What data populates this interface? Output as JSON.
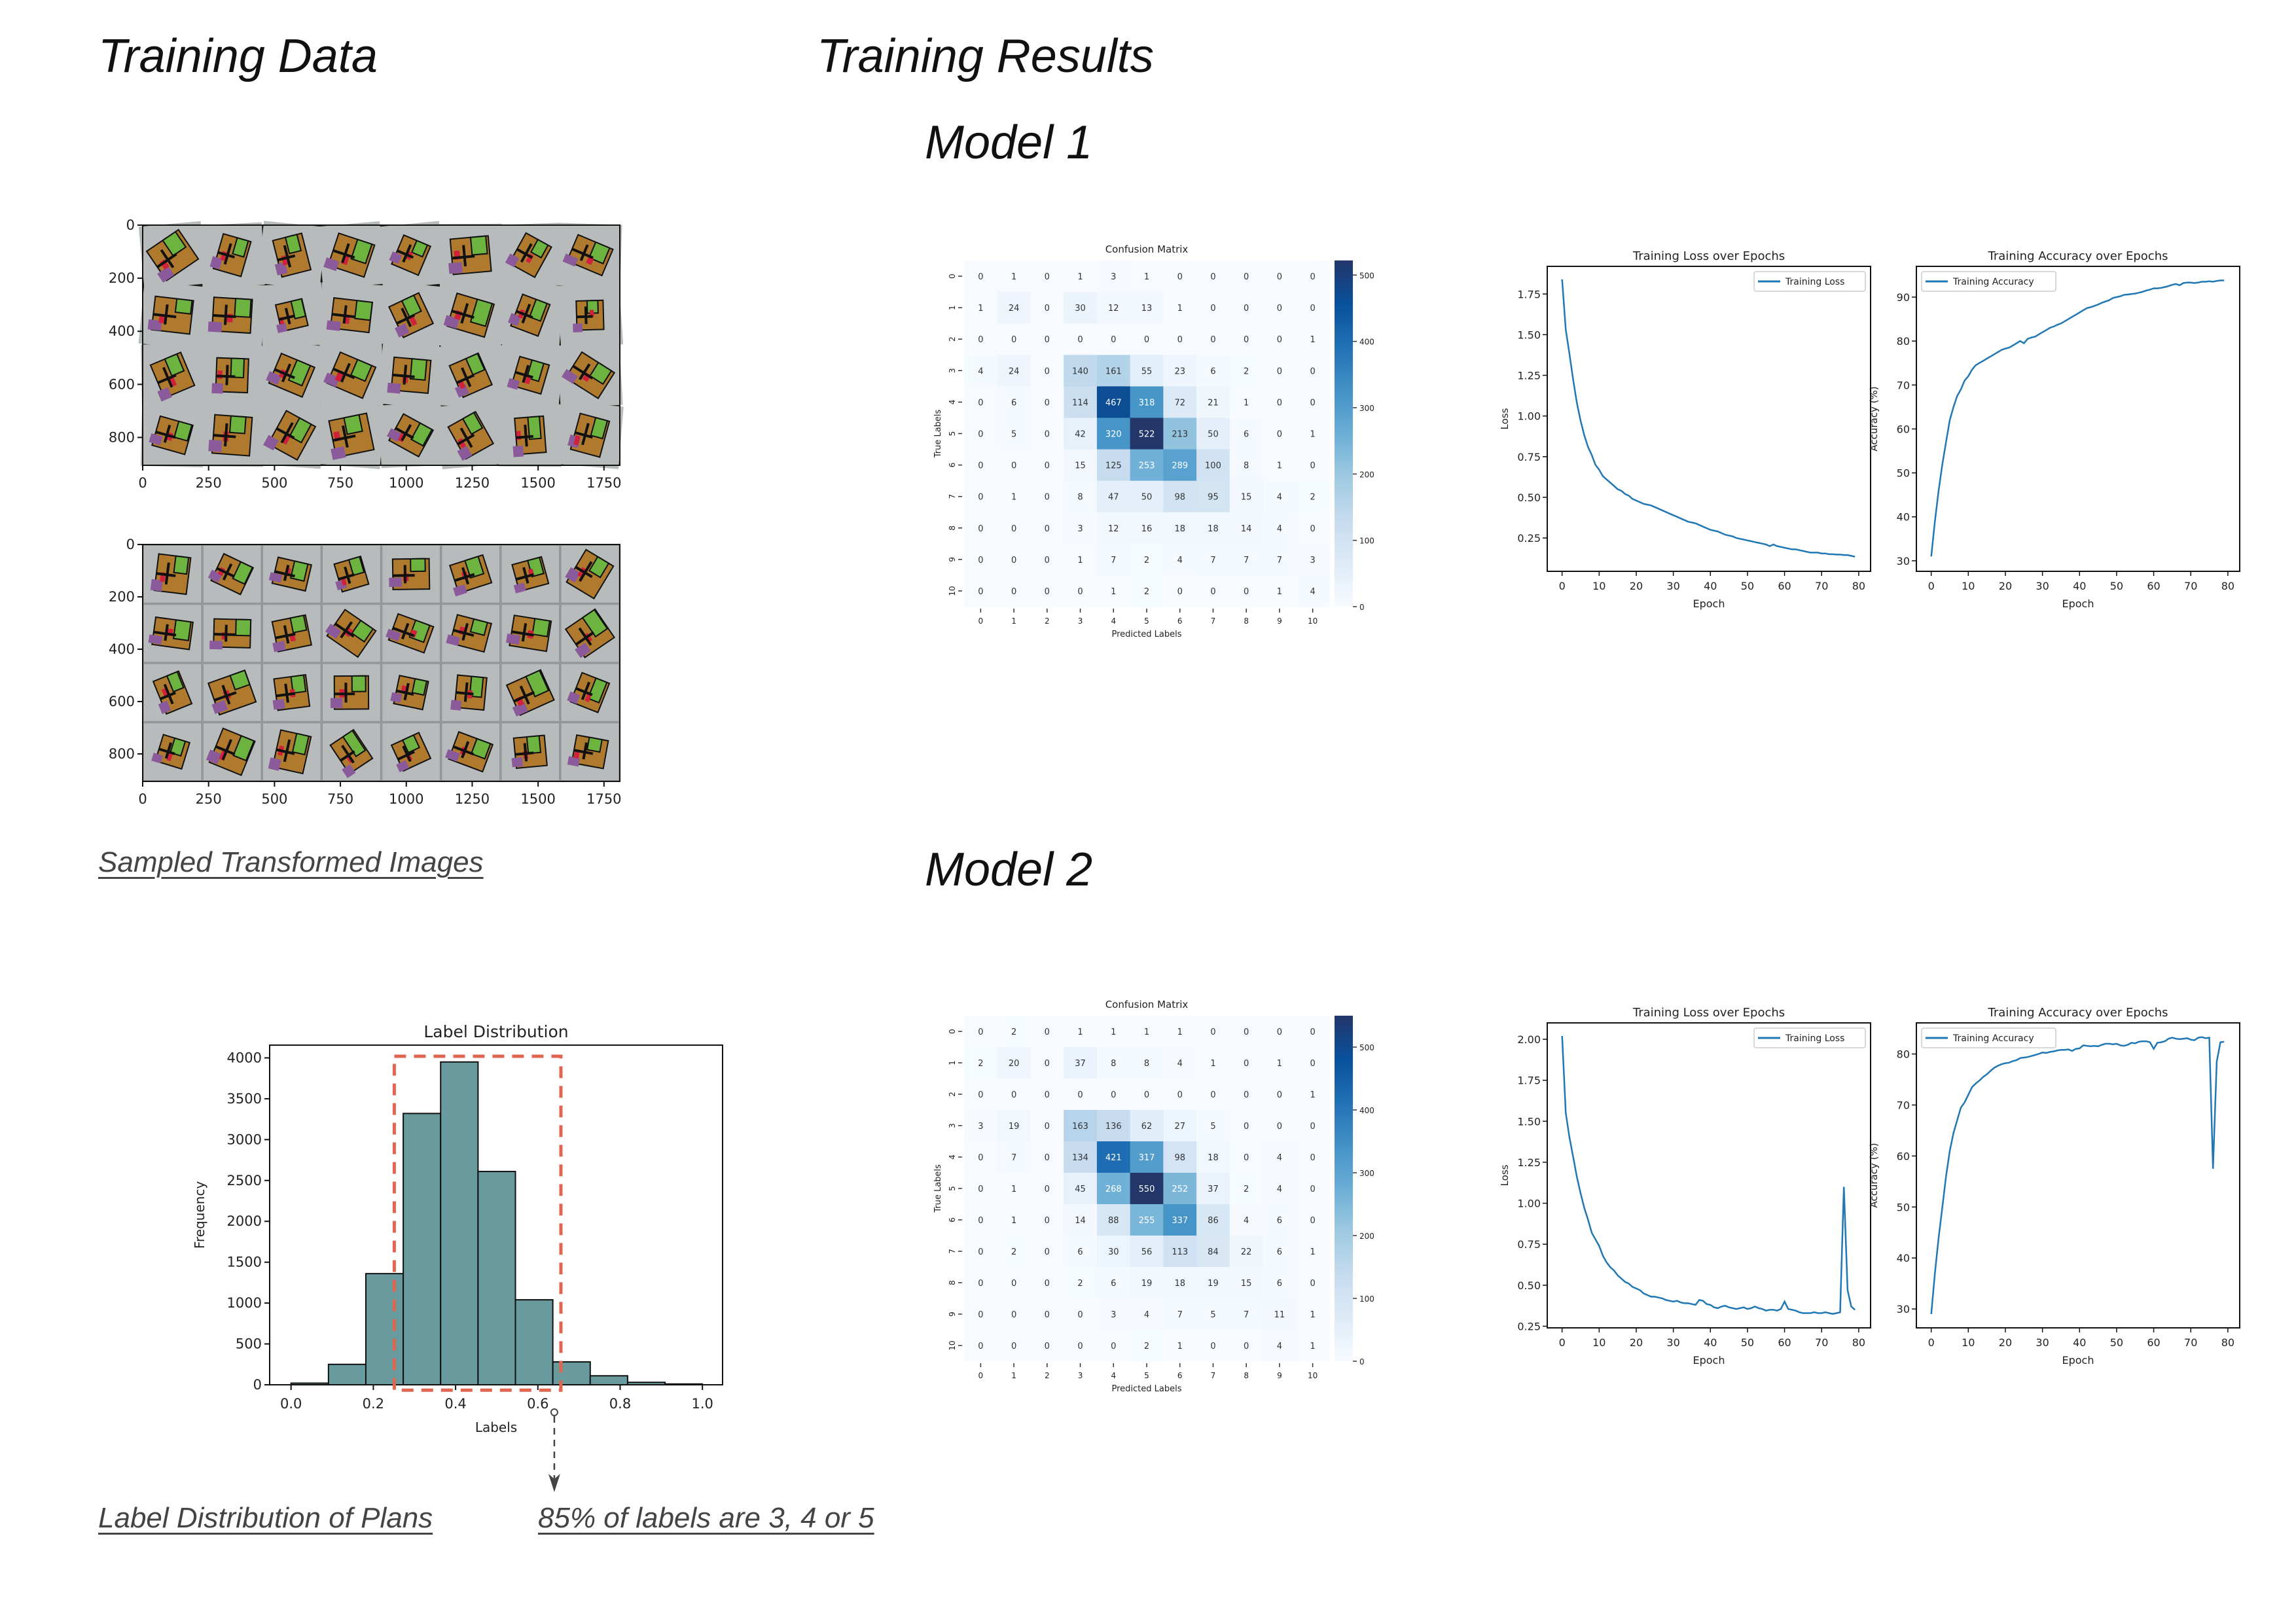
{
  "headings": {
    "training_data": "Training Data",
    "training_results": "Training Results",
    "model1": "Model 1",
    "model2": "Model 2"
  },
  "captions": {
    "sampled_images": "Sampled Transformed Images",
    "label_distribution": "Label Distribution of Plans",
    "annotation": "85% of labels are 3, 4 or 5"
  },
  "colors": {
    "histogram_bar": "#699a9e",
    "highlight_box": "#e06650",
    "line": "#1f77b4",
    "cmap": [
      "#f7fbff",
      "#deebf7",
      "#c6dbef",
      "#9ecae1",
      "#6baed6",
      "#4292c6",
      "#2171b5",
      "#08519c",
      "#23366a"
    ],
    "tile_bg": "#b8bbbb",
    "room_colors": [
      "#b07a2e",
      "#6cb43f",
      "#111111",
      "#8a5a9b",
      "#d0203a",
      "#3a7bd5"
    ]
  },
  "chart_data": [
    {
      "type": "image",
      "content": "sample-floorplans",
      "grid": [
        8,
        4
      ],
      "xlim": [
        0,
        1810
      ],
      "ylim": [
        905,
        0
      ],
      "xticks": [
        "0",
        "250",
        "500",
        "750",
        "1000",
        "1250",
        "1500",
        "1750"
      ],
      "yticks": [
        "0",
        "200",
        "400",
        "600",
        "800"
      ]
    },
    {
      "type": "image",
      "content": "sample-floorplans",
      "grid": [
        8,
        4
      ],
      "xlim": [
        0,
        1810
      ],
      "ylim": [
        905,
        0
      ],
      "xticks": [
        "0",
        "250",
        "500",
        "750",
        "1000",
        "1250",
        "1500",
        "1750"
      ],
      "yticks": [
        "0",
        "200",
        "400",
        "600",
        "800"
      ]
    },
    {
      "type": "bar",
      "title": "Label Distribution",
      "xlabel": "Labels",
      "ylabel": "Frequency",
      "bin_range": [
        0,
        1
      ],
      "values": [
        20,
        250,
        1360,
        3320,
        3950,
        2610,
        1040,
        280,
        110,
        30,
        10
      ],
      "xlim": [
        -0.052,
        1.049
      ],
      "ylim": [
        0,
        4156
      ],
      "xticks": [
        "0.0",
        "0.2",
        "0.4",
        "0.6",
        "0.8",
        "1.0"
      ],
      "yticks": [
        "0",
        "500",
        "1000",
        "1500",
        "2000",
        "2500",
        "3000",
        "3500",
        "4000"
      ],
      "grid": false,
      "highlight": {
        "x": [
          0.251,
          0.656
        ],
        "y": [
          -66,
          4020
        ]
      }
    },
    {
      "type": "heatmap",
      "title": "Confusion Matrix",
      "xlabel": "Predicted Labels",
      "ylabel": "True Labels",
      "cmap": "Blues",
      "labels": [
        "0",
        "1",
        "2",
        "3",
        "4",
        "5",
        "6",
        "7",
        "8",
        "9",
        "10"
      ],
      "matrix": [
        [
          0,
          1,
          0,
          1,
          3,
          1,
          0,
          0,
          0,
          0,
          0
        ],
        [
          1,
          24,
          0,
          30,
          12,
          13,
          1,
          0,
          0,
          0,
          0
        ],
        [
          0,
          0,
          0,
          0,
          0,
          0,
          0,
          0,
          0,
          0,
          1
        ],
        [
          4,
          24,
          0,
          140,
          161,
          55,
          23,
          6,
          2,
          0,
          0
        ],
        [
          0,
          6,
          0,
          114,
          467,
          318,
          72,
          21,
          1,
          0,
          0
        ],
        [
          0,
          5,
          0,
          42,
          320,
          522,
          213,
          50,
          6,
          0,
          1
        ],
        [
          0,
          0,
          0,
          15,
          125,
          253,
          289,
          100,
          8,
          1,
          0
        ],
        [
          0,
          1,
          0,
          8,
          47,
          50,
          98,
          95,
          15,
          4,
          2
        ],
        [
          0,
          0,
          0,
          3,
          12,
          16,
          18,
          18,
          14,
          4,
          0
        ],
        [
          0,
          0,
          0,
          1,
          7,
          2,
          4,
          7,
          7,
          7,
          3
        ],
        [
          0,
          0,
          0,
          0,
          1,
          2,
          0,
          0,
          0,
          1,
          4
        ]
      ],
      "colorbar_ticks": [
        "0",
        "100",
        "200",
        "300",
        "400",
        "500"
      ]
    },
    {
      "type": "line",
      "title": "Training Loss over Epochs",
      "xlabel": "Epoch",
      "ylabel": "Loss",
      "legend": "top-right",
      "xlim": [
        -4,
        83.2
      ],
      "ylim": [
        0.045,
        1.92
      ],
      "xticks": [
        "0",
        "10",
        "20",
        "30",
        "40",
        "50",
        "60",
        "70",
        "80"
      ],
      "yticks": [
        "0.25",
        "0.50",
        "0.75",
        "1.00",
        "1.25",
        "1.50",
        "1.75"
      ],
      "series": [
        {
          "name": "Training Loss",
          "x_range": [
            0,
            79
          ],
          "values": [
            1.84,
            1.53,
            1.38,
            1.22,
            1.08,
            0.97,
            0.88,
            0.81,
            0.76,
            0.7,
            0.67,
            0.63,
            0.61,
            0.59,
            0.57,
            0.55,
            0.54,
            0.52,
            0.51,
            0.49,
            0.48,
            0.47,
            0.46,
            0.455,
            0.45,
            0.44,
            0.43,
            0.42,
            0.41,
            0.4,
            0.39,
            0.38,
            0.37,
            0.36,
            0.35,
            0.345,
            0.34,
            0.33,
            0.32,
            0.31,
            0.3,
            0.295,
            0.29,
            0.28,
            0.27,
            0.265,
            0.26,
            0.25,
            0.245,
            0.24,
            0.235,
            0.23,
            0.225,
            0.22,
            0.215,
            0.21,
            0.2,
            0.21,
            0.2,
            0.195,
            0.19,
            0.185,
            0.18,
            0.18,
            0.175,
            0.17,
            0.165,
            0.16,
            0.16,
            0.16,
            0.155,
            0.155,
            0.15,
            0.15,
            0.148,
            0.148,
            0.145,
            0.145,
            0.14,
            0.135
          ]
        }
      ]
    },
    {
      "type": "line",
      "title": "Training Accuracy over Epochs",
      "xlabel": "Epoch",
      "ylabel": "Accuracy (%)",
      "legend": "top-left",
      "xlim": [
        -4,
        83.2
      ],
      "ylim": [
        27.6,
        97
      ],
      "xticks": [
        "0",
        "10",
        "20",
        "30",
        "40",
        "50",
        "60",
        "70",
        "80"
      ],
      "yticks": [
        "30",
        "40",
        "50",
        "60",
        "70",
        "80",
        "90"
      ],
      "series": [
        {
          "name": "Training Accuracy",
          "x_range": [
            0,
            79
          ],
          "values": [
            31,
            39,
            46,
            52,
            57,
            62,
            65,
            67.5,
            69,
            71,
            72,
            73.5,
            74.5,
            75,
            75.5,
            76,
            76.5,
            77,
            77.5,
            78,
            78.3,
            78.5,
            79,
            79.5,
            80,
            79.5,
            80.5,
            80.8,
            81,
            81.5,
            82,
            82.5,
            83,
            83.3,
            83.7,
            84,
            84.5,
            85,
            85.5,
            86,
            86.5,
            87,
            87.5,
            87.7,
            88,
            88.3,
            88.7,
            89,
            89.3,
            89.8,
            90,
            90.2,
            90.5,
            90.6,
            90.7,
            90.8,
            91,
            91.2,
            91.5,
            91.7,
            92,
            92,
            92.1,
            92.3,
            92.5,
            92.8,
            93,
            92.7,
            93.2,
            93.3,
            93.3,
            93.2,
            93.3,
            93.5,
            93.5,
            93.6,
            93.5,
            93.7,
            93.8,
            93.8
          ]
        }
      ]
    },
    {
      "type": "heatmap",
      "title": "Confusion Matrix",
      "xlabel": "Predicted Labels",
      "ylabel": "True Labels",
      "cmap": "Blues",
      "labels": [
        "0",
        "1",
        "2",
        "3",
        "4",
        "5",
        "6",
        "7",
        "8",
        "9",
        "10"
      ],
      "matrix": [
        [
          0,
          2,
          0,
          1,
          1,
          1,
          1,
          0,
          0,
          0,
          0
        ],
        [
          2,
          20,
          0,
          37,
          8,
          8,
          4,
          1,
          0,
          1,
          0
        ],
        [
          0,
          0,
          0,
          0,
          0,
          0,
          0,
          0,
          0,
          0,
          1
        ],
        [
          3,
          19,
          0,
          163,
          136,
          62,
          27,
          5,
          0,
          0,
          0
        ],
        [
          0,
          7,
          0,
          134,
          421,
          317,
          98,
          18,
          0,
          4,
          0
        ],
        [
          0,
          1,
          0,
          45,
          268,
          550,
          252,
          37,
          2,
          4,
          0
        ],
        [
          0,
          1,
          0,
          14,
          88,
          255,
          337,
          86,
          4,
          6,
          0
        ],
        [
          0,
          2,
          0,
          6,
          30,
          56,
          113,
          84,
          22,
          6,
          1
        ],
        [
          0,
          0,
          0,
          2,
          6,
          19,
          18,
          19,
          15,
          6,
          0
        ],
        [
          0,
          0,
          0,
          0,
          3,
          4,
          7,
          5,
          7,
          11,
          1
        ],
        [
          0,
          0,
          0,
          0,
          0,
          2,
          1,
          0,
          0,
          4,
          1
        ]
      ],
      "colorbar_ticks": [
        "0",
        "100",
        "200",
        "300",
        "400",
        "500"
      ]
    },
    {
      "type": "line",
      "title": "Training Loss over Epochs",
      "xlabel": "Epoch",
      "ylabel": "Loss",
      "legend": "top-right",
      "xlim": [
        -4,
        83.2
      ],
      "ylim": [
        0.24,
        2.1
      ],
      "xticks": [
        "0",
        "10",
        "20",
        "30",
        "40",
        "50",
        "60",
        "70",
        "80"
      ],
      "yticks": [
        "0.25",
        "0.50",
        "0.75",
        "1.00",
        "1.25",
        "1.50",
        "1.75",
        "2.00"
      ],
      "series": [
        {
          "name": "Training Loss",
          "x_range": [
            0,
            79
          ],
          "values": [
            2.02,
            1.55,
            1.4,
            1.28,
            1.16,
            1.06,
            0.97,
            0.9,
            0.82,
            0.78,
            0.74,
            0.68,
            0.64,
            0.61,
            0.59,
            0.56,
            0.54,
            0.52,
            0.51,
            0.49,
            0.48,
            0.47,
            0.45,
            0.44,
            0.43,
            0.43,
            0.425,
            0.42,
            0.41,
            0.405,
            0.4,
            0.405,
            0.395,
            0.39,
            0.39,
            0.385,
            0.38,
            0.41,
            0.405,
            0.385,
            0.38,
            0.365,
            0.36,
            0.37,
            0.375,
            0.365,
            0.36,
            0.355,
            0.36,
            0.365,
            0.355,
            0.36,
            0.37,
            0.36,
            0.355,
            0.345,
            0.35,
            0.35,
            0.345,
            0.355,
            0.4,
            0.355,
            0.35,
            0.345,
            0.335,
            0.33,
            0.33,
            0.33,
            0.335,
            0.33,
            0.33,
            0.335,
            0.33,
            0.325,
            0.33,
            0.335,
            1.1,
            0.47,
            0.37,
            0.35
          ]
        }
      ]
    },
    {
      "type": "line",
      "title": "Training Accuracy over Epochs",
      "xlabel": "Epoch",
      "ylabel": "Accuracy (%)",
      "legend": "top-left",
      "xlim": [
        -4,
        83.2
      ],
      "ylim": [
        26.3,
        86.1
      ],
      "xticks": [
        "0",
        "10",
        "20",
        "30",
        "40",
        "50",
        "60",
        "70",
        "80"
      ],
      "yticks": [
        "30",
        "40",
        "50",
        "60",
        "70",
        "80"
      ],
      "series": [
        {
          "name": "Training Accuracy",
          "x_range": [
            0,
            79
          ],
          "values": [
            29,
            37,
            44,
            50,
            56,
            61,
            64.5,
            67,
            69.5,
            70.5,
            72,
            73.5,
            74.2,
            74.8,
            75.5,
            76,
            76.7,
            77.3,
            77.7,
            78,
            78.2,
            78.3,
            78.6,
            78.8,
            79.2,
            79.3,
            79.4,
            79.6,
            79.8,
            80,
            80.3,
            80.2,
            80.4,
            80.5,
            80.7,
            80.8,
            80.8,
            80.9,
            80.6,
            81,
            81.1,
            81.7,
            81.6,
            81.5,
            81.6,
            81.5,
            81.8,
            82,
            82,
            81.9,
            82,
            81.7,
            81.6,
            81.8,
            82.2,
            82.1,
            82.4,
            82.5,
            82.5,
            82.3,
            81,
            82.2,
            82.3,
            82.5,
            83,
            83.2,
            83,
            82.9,
            83,
            83.1,
            82.8,
            82.7,
            83.2,
            83.3,
            83.1,
            83.2,
            57.5,
            78.5,
            82.3,
            82.4
          ]
        }
      ]
    }
  ]
}
